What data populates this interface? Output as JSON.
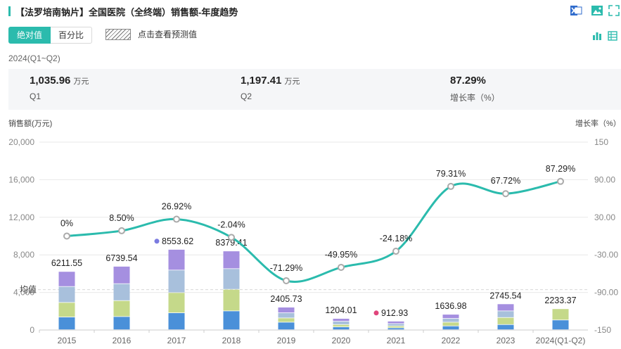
{
  "header": {
    "title": "【法罗培南钠片】全国医院（全终端）销售额-年度趋势"
  },
  "tabs": [
    {
      "label": "绝对值",
      "active": true
    },
    {
      "label": "百分比",
      "active": false
    }
  ],
  "forecast_legend": "点击查看预测值",
  "period": "2024(Q1~Q2)",
  "summary": [
    {
      "value": "1,035.96",
      "unit": "万元",
      "label": "Q1"
    },
    {
      "value": "1,197.41",
      "unit": "万元",
      "label": "Q2"
    },
    {
      "value": "87.29%",
      "unit": "",
      "label": "增长率（%）"
    }
  ],
  "colors": {
    "accent": "#2bbbad",
    "seg1": "#4a90d9",
    "seg2": "#c5d98a",
    "seg3": "#a8c0dc",
    "seg4": "#a58fe0",
    "line": "#2bbbad"
  },
  "chart_data": {
    "type": "bar",
    "left_axis_title": "销售额(万元)",
    "right_axis_title": "增长率（%）",
    "categories": [
      "2015",
      "2016",
      "2017",
      "2018",
      "2019",
      "2020",
      "2021",
      "2022",
      "2023",
      "2024(Q1-Q2)"
    ],
    "totals": [
      6211.55,
      6739.54,
      8553.62,
      8379.41,
      2405.73,
      1204.01,
      912.93,
      1636.98,
      2745.54,
      2233.37
    ],
    "total_labels": [
      "6211.55",
      "6739.54",
      "8553.62",
      "8379.41",
      "2405.73",
      "1204.01",
      "912.93",
      "1636.98",
      "2745.54",
      "2233.37"
    ],
    "segments": [
      [
        1350,
        1550,
        1700,
        1600
      ],
      [
        1400,
        1700,
        1800,
        1850
      ],
      [
        1800,
        2150,
        2400,
        2200
      ],
      [
        2000,
        2300,
        2200,
        1880
      ],
      [
        800,
        450,
        550,
        600
      ],
      [
        300,
        250,
        350,
        300
      ],
      [
        200,
        200,
        250,
        260
      ],
      [
        400,
        400,
        400,
        440
      ],
      [
        550,
        750,
        700,
        750
      ],
      [
        1036,
        1197,
        0,
        0
      ]
    ],
    "growth": [
      0,
      8.5,
      26.92,
      -2.04,
      -71.29,
      -49.95,
      -24.18,
      79.31,
      67.72,
      87.29
    ],
    "growth_labels": [
      "0%",
      "8.50%",
      "26.92%",
      "-2.04%",
      "-71.29%",
      "-49.95%",
      "-24.18%",
      "79.31%",
      "67.72%",
      "87.29%"
    ],
    "y_left": {
      "min": 0,
      "max": 20000,
      "ticks": [
        0,
        4000,
        8000,
        12000,
        16000,
        20000
      ],
      "tick_labels": [
        "0",
        "4,000",
        "8,000",
        "12,000",
        "16,000",
        "20,000"
      ]
    },
    "y_right": {
      "min": -150,
      "max": 150,
      "ticks": [
        -150,
        -90,
        -30,
        30,
        90,
        150
      ],
      "tick_labels": [
        "-150",
        "-90.00",
        "-30.00",
        "30.00",
        "90.00",
        "150"
      ]
    },
    "average_label": "均值",
    "average_value": 4302,
    "highlight": {
      "max_index": 2,
      "min_index": 6,
      "max_color": "#7b7be0",
      "min_color": "#e0457b"
    },
    "grid": true
  }
}
